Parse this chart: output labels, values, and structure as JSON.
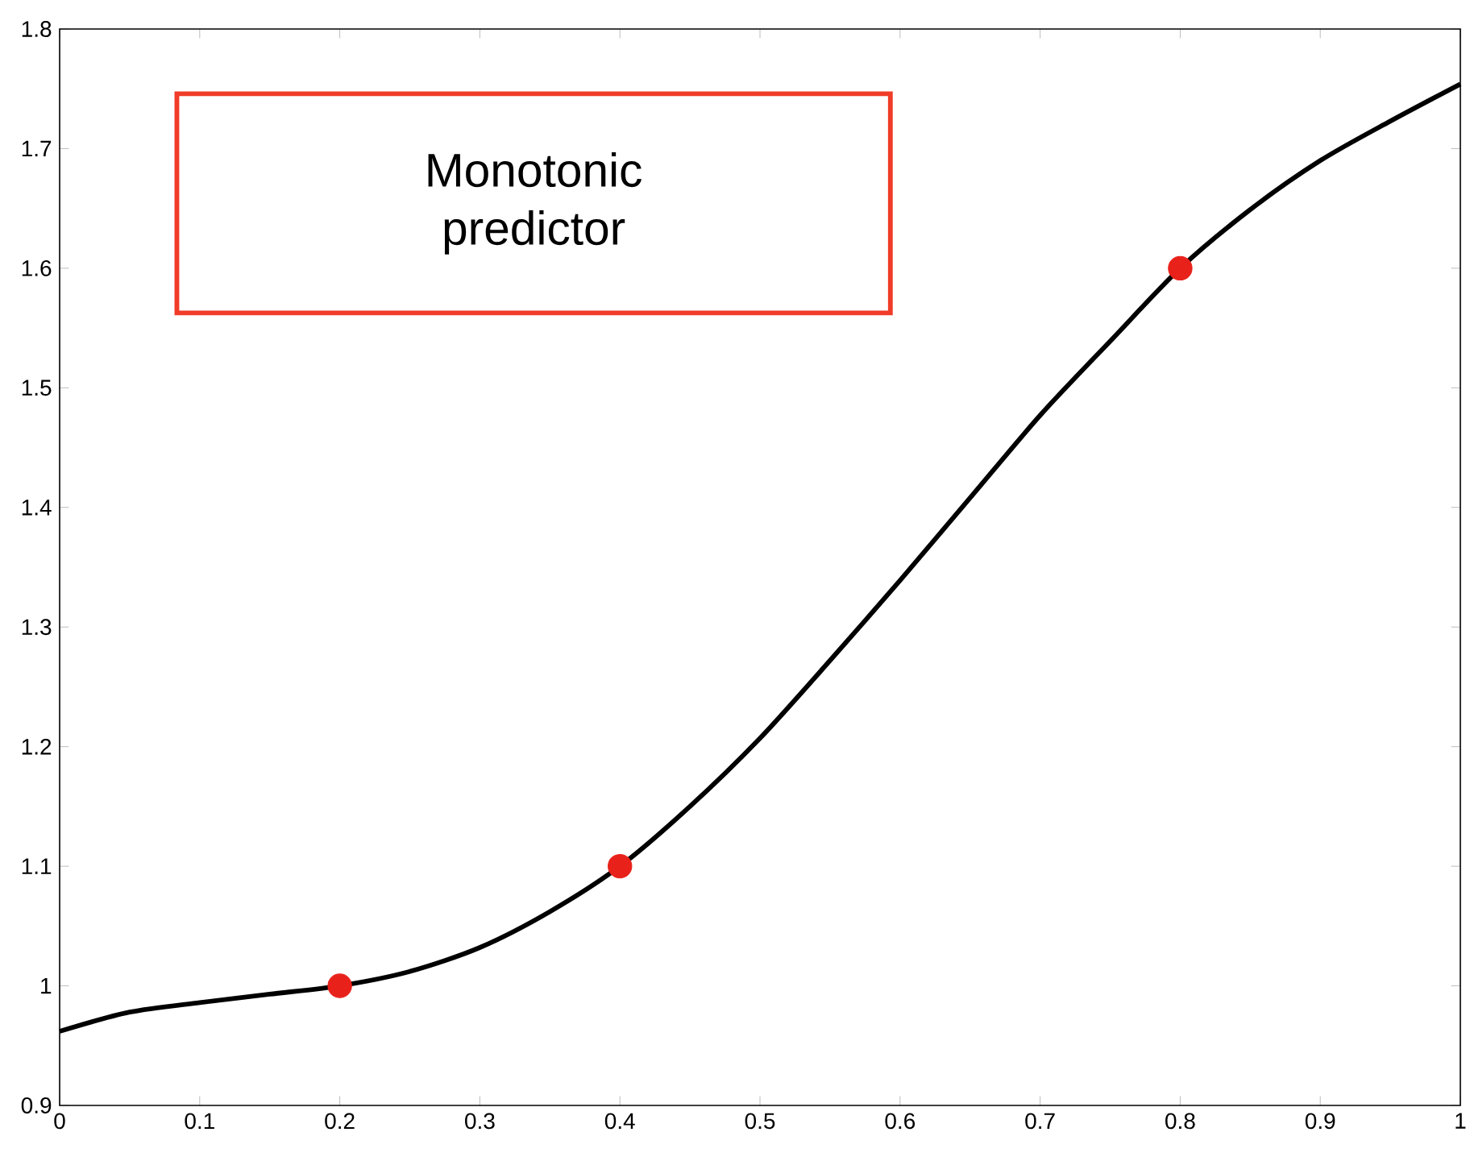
{
  "chart_data": {
    "type": "line",
    "xlim": [
      0,
      1
    ],
    "ylim": [
      0.9,
      1.8
    ],
    "xticks": [
      0,
      0.1,
      0.2,
      0.3,
      0.4,
      0.5,
      0.6,
      0.7,
      0.8,
      0.9,
      1
    ],
    "yticks": [
      0.9,
      1,
      1.1,
      1.2,
      1.3,
      1.4,
      1.5,
      1.6,
      1.7,
      1.8
    ],
    "grid": false,
    "annotations": [
      "Monotonic predictor"
    ],
    "series": [
      {
        "color": "#000000",
        "marker": "none",
        "x": [
          0,
          0.05,
          0.1,
          0.15,
          0.2,
          0.25,
          0.3,
          0.35,
          0.4,
          0.45,
          0.5,
          0.55,
          0.6,
          0.65,
          0.7,
          0.75,
          0.8,
          0.85,
          0.9,
          0.95,
          1
        ],
        "values": [
          0.962,
          0.978,
          0.986,
          0.993,
          1.0,
          1.012,
          1.032,
          1.062,
          1.1,
          1.15,
          1.207,
          1.272,
          1.339,
          1.408,
          1.477,
          1.539,
          1.6,
          1.649,
          1.69,
          1.723,
          1.754
        ]
      },
      {
        "type": "scatter",
        "color": "#e8221b",
        "marker": "circle",
        "x": [
          0.2,
          0.4,
          0.8
        ],
        "values": [
          1.0,
          1.1,
          1.6
        ]
      }
    ]
  }
}
